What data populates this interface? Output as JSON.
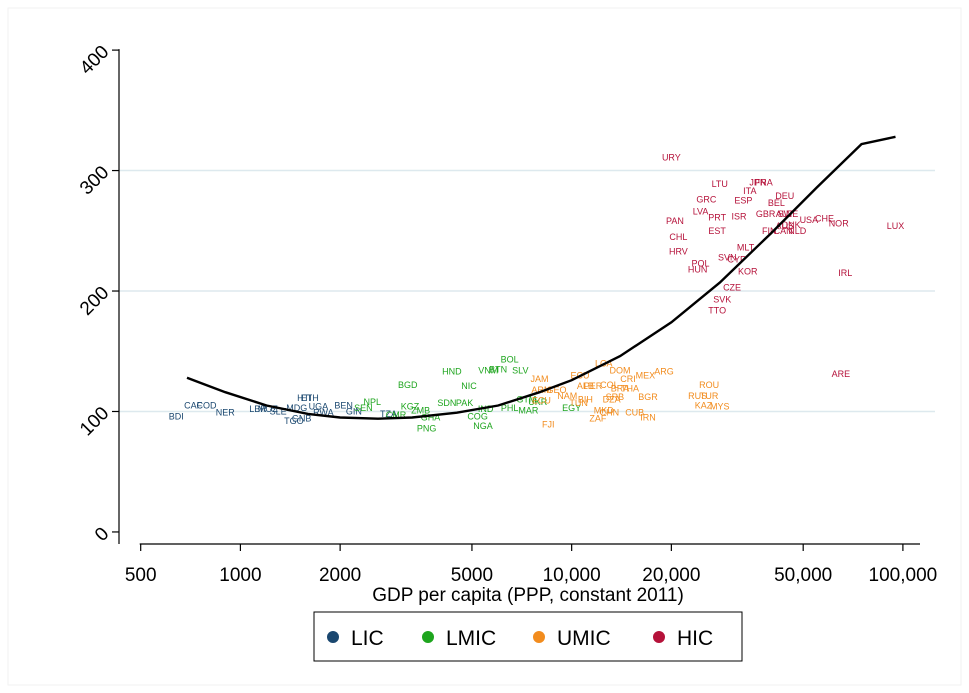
{
  "chart_data": {
    "type": "scatter",
    "title": "",
    "xlabel": "GDP per capita (PPP, constant 2011)",
    "ylabel": "",
    "x_scale": "log",
    "xlim": [
      430,
      125000
    ],
    "ylim": [
      -10,
      420
    ],
    "x_ticks": [
      500,
      1000,
      2000,
      5000,
      10000,
      20000,
      50000,
      100000
    ],
    "x_tick_labels": [
      "500",
      "1000",
      "2000",
      "5000",
      "10,000",
      "20,000",
      "50,000",
      "100,000"
    ],
    "y_ticks": [
      0,
      100,
      200,
      300,
      400
    ],
    "y_tick_labels": [
      "0",
      "100",
      "200",
      "300",
      "400"
    ],
    "grid": "horizontal",
    "legend": {
      "position": "bottom",
      "entries": [
        "LIC",
        "LMIC",
        "UMIC",
        "HIC"
      ]
    },
    "colors": {
      "LIC": "#1a476f",
      "LMIC": "#1ea51e",
      "UMIC": "#f28c1e",
      "HIC": "#b5123a",
      "fit": "#000000"
    },
    "series": [
      {
        "name": "LIC",
        "points": [
          {
            "label": "BDI",
            "x": 640,
            "y": 96
          },
          {
            "label": "CAF",
            "x": 720,
            "y": 105
          },
          {
            "label": "COD",
            "x": 790,
            "y": 105
          },
          {
            "label": "NER",
            "x": 900,
            "y": 99
          },
          {
            "label": "LBR",
            "x": 1130,
            "y": 102
          },
          {
            "label": "MOZ",
            "x": 1210,
            "y": 102
          },
          {
            "label": "SLE",
            "x": 1300,
            "y": 100
          },
          {
            "label": "ETH",
            "x": 1620,
            "y": 111
          },
          {
            "label": "HTI",
            "x": 1560,
            "y": 111
          },
          {
            "label": "MDG",
            "x": 1480,
            "y": 103
          },
          {
            "label": "UGA",
            "x": 1720,
            "y": 104
          },
          {
            "label": "BEN",
            "x": 2050,
            "y": 105
          },
          {
            "label": "TGO",
            "x": 1450,
            "y": 92
          },
          {
            "label": "GNB",
            "x": 1530,
            "y": 94
          },
          {
            "label": "RWA",
            "x": 1780,
            "y": 99
          },
          {
            "label": "GIN",
            "x": 2200,
            "y": 100
          },
          {
            "label": "TZA",
            "x": 2800,
            "y": 98
          }
        ]
      },
      {
        "name": "LMIC",
        "points": [
          {
            "label": "NPL",
            "x": 2500,
            "y": 108
          },
          {
            "label": "BGD",
            "x": 3200,
            "y": 122
          },
          {
            "label": "HND",
            "x": 4350,
            "y": 133
          },
          {
            "label": "NIC",
            "x": 4900,
            "y": 121
          },
          {
            "label": "BOL",
            "x": 6500,
            "y": 143
          },
          {
            "label": "BTN",
            "x": 6000,
            "y": 135
          },
          {
            "label": "VNM",
            "x": 5600,
            "y": 134
          },
          {
            "label": "SLV",
            "x": 7000,
            "y": 134
          },
          {
            "label": "KGZ",
            "x": 3250,
            "y": 104
          },
          {
            "label": "SEN",
            "x": 2350,
            "y": 103
          },
          {
            "label": "PAK",
            "x": 4750,
            "y": 107
          },
          {
            "label": "SDN",
            "x": 4200,
            "y": 107
          },
          {
            "label": "ZMB",
            "x": 3500,
            "y": 101
          },
          {
            "label": "GHA",
            "x": 3750,
            "y": 95
          },
          {
            "label": "PNG",
            "x": 3650,
            "y": 86
          },
          {
            "label": "NGA",
            "x": 5400,
            "y": 88
          },
          {
            "label": "COG",
            "x": 5200,
            "y": 96
          },
          {
            "label": "CMR",
            "x": 2950,
            "y": 97
          },
          {
            "label": "GTM",
            "x": 7300,
            "y": 110
          },
          {
            "label": "MAR",
            "x": 7400,
            "y": 101
          },
          {
            "label": "UKR",
            "x": 7900,
            "y": 108
          },
          {
            "label": "PHL",
            "x": 6500,
            "y": 103
          },
          {
            "label": "IND",
            "x": 5500,
            "y": 102
          },
          {
            "label": "EGY",
            "x": 10000,
            "y": 103
          }
        ]
      },
      {
        "name": "UMIC",
        "points": [
          {
            "label": "LCA",
            "x": 12500,
            "y": 140
          },
          {
            "label": "ECU",
            "x": 10600,
            "y": 130
          },
          {
            "label": "JAM",
            "x": 8000,
            "y": 127
          },
          {
            "label": "DOM",
            "x": 14000,
            "y": 134
          },
          {
            "label": "CRI",
            "x": 14800,
            "y": 127
          },
          {
            "label": "MEX",
            "x": 16700,
            "y": 130
          },
          {
            "label": "ARG",
            "x": 19000,
            "y": 133
          },
          {
            "label": "ROU",
            "x": 26000,
            "y": 122
          },
          {
            "label": "RUS",
            "x": 24000,
            "y": 113
          },
          {
            "label": "TUR",
            "x": 26000,
            "y": 113
          },
          {
            "label": "KAZ",
            "x": 25000,
            "y": 105
          },
          {
            "label": "MYS",
            "x": 28000,
            "y": 104
          },
          {
            "label": "IRN",
            "x": 17000,
            "y": 95
          },
          {
            "label": "CHN",
            "x": 13000,
            "y": 99
          },
          {
            "label": "ZAF",
            "x": 12000,
            "y": 94
          },
          {
            "label": "FJI",
            "x": 8500,
            "y": 89
          },
          {
            "label": "TUN",
            "x": 10500,
            "y": 107
          },
          {
            "label": "ALB",
            "x": 11000,
            "y": 121
          },
          {
            "label": "SRB",
            "x": 13500,
            "y": 112
          },
          {
            "label": "BGR",
            "x": 17000,
            "y": 112
          },
          {
            "label": "THA",
            "x": 15000,
            "y": 119
          },
          {
            "label": "MKD",
            "x": 12500,
            "y": 101
          },
          {
            "label": "NAM",
            "x": 9700,
            "y": 113
          },
          {
            "label": "ARM",
            "x": 8100,
            "y": 118
          },
          {
            "label": "GEO",
            "x": 9000,
            "y": 118
          },
          {
            "label": "BRA",
            "x": 14000,
            "y": 119
          },
          {
            "label": "DZA",
            "x": 13200,
            "y": 110
          },
          {
            "label": "COL",
            "x": 13000,
            "y": 122
          },
          {
            "label": "PER",
            "x": 11600,
            "y": 121
          },
          {
            "label": "BIH",
            "x": 11000,
            "y": 110
          },
          {
            "label": "CUB",
            "x": 15500,
            "y": 99
          },
          {
            "label": "ECU",
            "x": 8100,
            "y": 109
          }
        ]
      },
      {
        "name": "HIC",
        "points": [
          {
            "label": "URY",
            "x": 20000,
            "y": 311
          },
          {
            "label": "LTU",
            "x": 28000,
            "y": 289
          },
          {
            "label": "PRT",
            "x": 27500,
            "y": 261
          },
          {
            "label": "GRC",
            "x": 25500,
            "y": 276
          },
          {
            "label": "LVA",
            "x": 24500,
            "y": 266
          },
          {
            "label": "PAN",
            "x": 20500,
            "y": 258
          },
          {
            "label": "ITA",
            "x": 34500,
            "y": 283
          },
          {
            "label": "FRA",
            "x": 38000,
            "y": 290
          },
          {
            "label": "JPN",
            "x": 36500,
            "y": 290
          },
          {
            "label": "ESP",
            "x": 33000,
            "y": 275
          },
          {
            "label": "BEL",
            "x": 41500,
            "y": 273
          },
          {
            "label": "DEU",
            "x": 44000,
            "y": 279
          },
          {
            "label": "GBR",
            "x": 38500,
            "y": 264
          },
          {
            "label": "AUT",
            "x": 44000,
            "y": 264
          },
          {
            "label": "SWE",
            "x": 45000,
            "y": 264
          },
          {
            "label": "ISR",
            "x": 32000,
            "y": 262
          },
          {
            "label": "EST",
            "x": 27500,
            "y": 250
          },
          {
            "label": "FIN",
            "x": 39500,
            "y": 250
          },
          {
            "label": "AUS",
            "x": 44000,
            "y": 254
          },
          {
            "label": "DNK",
            "x": 46000,
            "y": 255
          },
          {
            "label": "CAN",
            "x": 43500,
            "y": 250
          },
          {
            "label": "NLD",
            "x": 48000,
            "y": 250
          },
          {
            "label": "USA",
            "x": 52000,
            "y": 259
          },
          {
            "label": "CHE",
            "x": 58000,
            "y": 260
          },
          {
            "label": "NOR",
            "x": 64000,
            "y": 256
          },
          {
            "label": "LUX",
            "x": 95000,
            "y": 254
          },
          {
            "label": "CHL",
            "x": 21000,
            "y": 245
          },
          {
            "label": "HRV",
            "x": 21000,
            "y": 233
          },
          {
            "label": "MLT",
            "x": 33500,
            "y": 236
          },
          {
            "label": "SVN",
            "x": 29500,
            "y": 228
          },
          {
            "label": "CYP",
            "x": 31500,
            "y": 226
          },
          {
            "label": "POL",
            "x": 24500,
            "y": 223
          },
          {
            "label": "HUN",
            "x": 24000,
            "y": 218
          },
          {
            "label": "KOR",
            "x": 34000,
            "y": 216
          },
          {
            "label": "IRL",
            "x": 67000,
            "y": 215
          },
          {
            "label": "CZE",
            "x": 30500,
            "y": 203
          },
          {
            "label": "SVK",
            "x": 28500,
            "y": 193
          },
          {
            "label": "TTO",
            "x": 27500,
            "y": 184
          },
          {
            "label": "ARE",
            "x": 65000,
            "y": 131
          }
        ]
      }
    ],
    "fit_line": {
      "type": "quadratic in log(x)",
      "x": [
        690,
        900,
        1200,
        1600,
        2000,
        2600,
        3300,
        4500,
        6000,
        8000,
        10000,
        14000,
        20000,
        28000,
        40000,
        55000,
        75000,
        95000
      ],
      "y": [
        128,
        116,
        105,
        98,
        95,
        94,
        95,
        99,
        105,
        116,
        126,
        146,
        174,
        207,
        248,
        286,
        322,
        328
      ]
    }
  }
}
